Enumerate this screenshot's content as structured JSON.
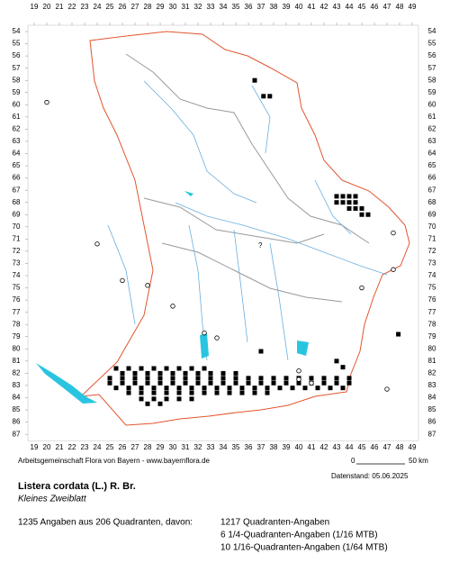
{
  "map": {
    "columns": [
      19,
      20,
      21,
      22,
      23,
      24,
      25,
      26,
      27,
      28,
      29,
      30,
      31,
      32,
      33,
      34,
      35,
      36,
      37,
      38,
      39,
      40,
      41,
      42,
      43,
      44,
      45,
      46,
      47,
      48,
      49
    ],
    "rows": [
      54,
      55,
      56,
      57,
      58,
      59,
      60,
      61,
      62,
      63,
      64,
      65,
      66,
      67,
      68,
      69,
      70,
      71,
      72,
      73,
      74,
      75,
      76,
      77,
      78,
      79,
      80,
      81,
      82,
      83,
      84,
      85,
      86,
      87
    ],
    "unknown_marker": "?"
  },
  "footer": {
    "credit": "Arbeitsgemeinschaft Flora von Bayern - www.bayernflora.de",
    "scale_start": "0",
    "scale_end": "50 km",
    "date": "Datenstand: 05.06.2025"
  },
  "species": {
    "scientific_name": "Listera cordata (L.) R. Br.",
    "common_name": "Kleines Zweiblatt"
  },
  "summary": {
    "total": "1235 Angaben aus 206 Quadranten, davon:",
    "lines": [
      "1217 Quadranten-Angaben",
      "6 1/4-Quadranten-Angaben (1/16 MTB)",
      "10 1/16-Quadranten-Angaben (1/64 MTB)"
    ]
  }
}
